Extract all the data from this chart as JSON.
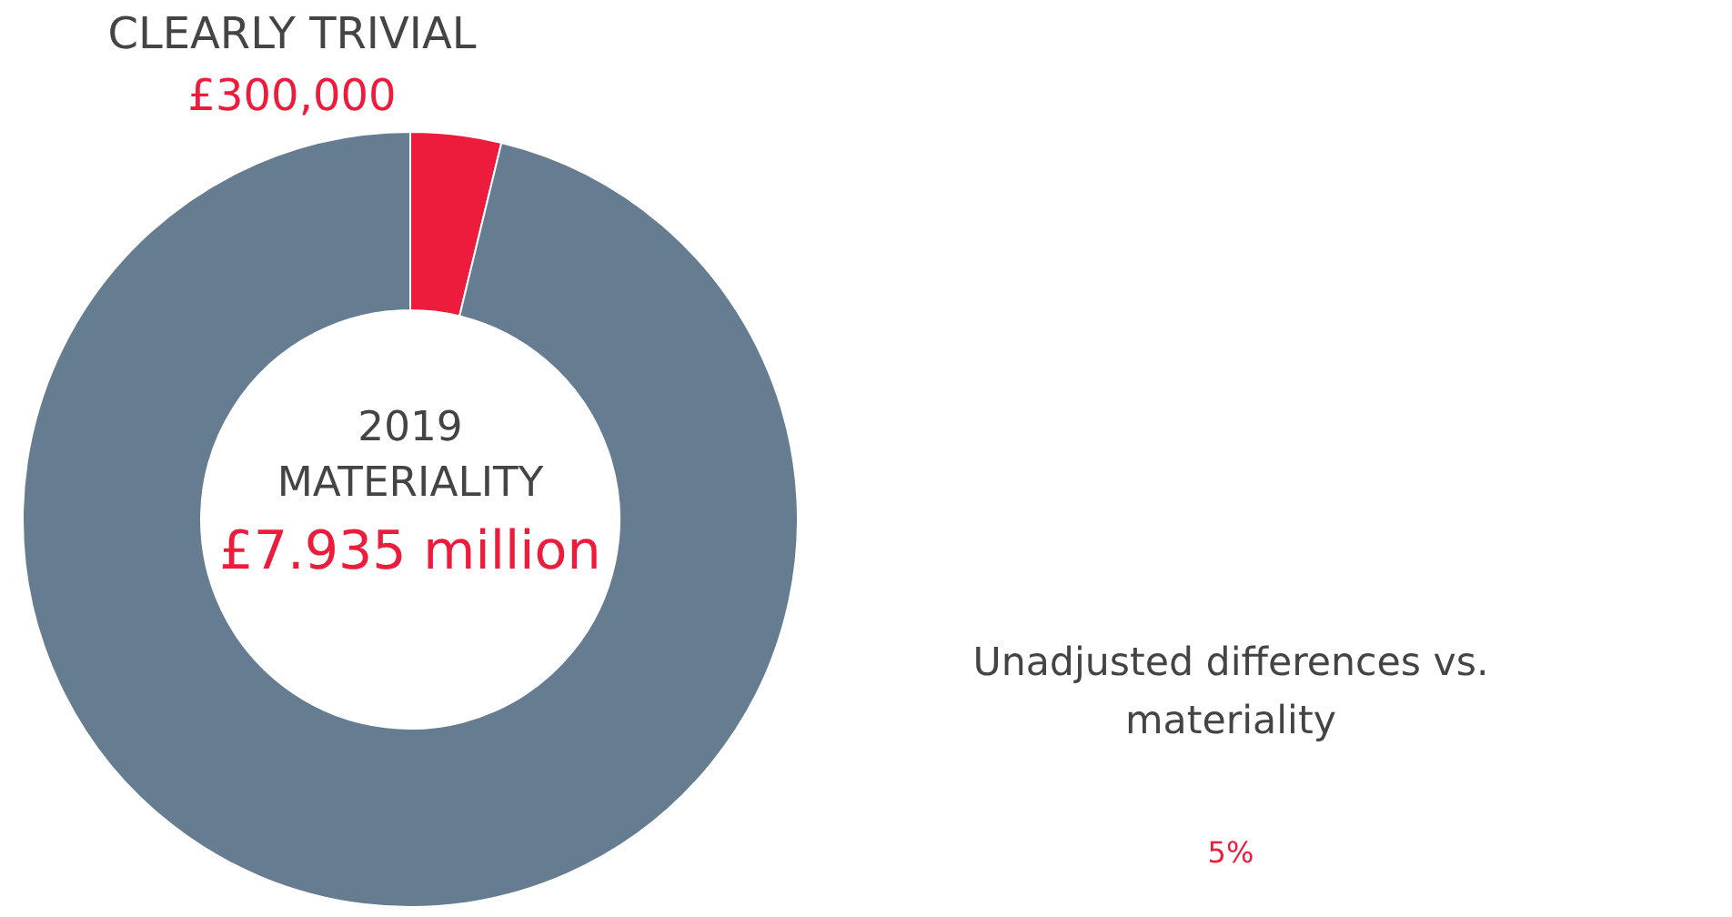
{
  "chart_data": {
    "type": "donut",
    "categories": [
      "CLEARLY TRIVIAL",
      null
    ],
    "values": [
      300000,
      7635000
    ],
    "colors": [
      "#ed1c3c",
      "#657c91"
    ],
    "value_labels": [
      "£300,000",
      null
    ],
    "annotations": [
      "2019",
      "MATERIALITY",
      "£7.935 million",
      "Unadjusted differences vs.",
      "materiality",
      "5%"
    ]
  }
}
